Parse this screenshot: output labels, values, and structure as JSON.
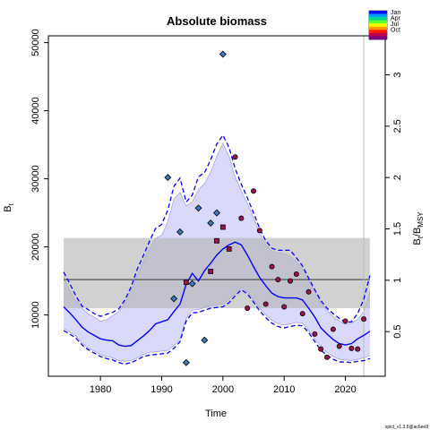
{
  "chart_data": {
    "type": "scatter",
    "title": "Absolute biomass",
    "xlabel": "Time",
    "ylabel_left": "B",
    "ylabel_left_sub": "t",
    "ylabel_right": "B",
    "ylabel_right_sub": "t",
    "ylabel_right_mid": "/B",
    "ylabel_right_sub2": "MSY",
    "xlim": [
      1971.5,
      2026.5
    ],
    "ylim": [
      1000,
      51000
    ],
    "ylim_right": [
      0.065,
      3.38
    ],
    "bmsy": 15200,
    "x_ticks": [
      1980,
      1990,
      2000,
      2010,
      2020
    ],
    "y_ticks": [
      10000,
      20000,
      30000,
      40000,
      50000
    ],
    "y_ticks_right": [
      0.5,
      1,
      1.5,
      2,
      2.5,
      3
    ],
    "bmsy_band": {
      "x": [
        1974,
        2024
      ],
      "y": [
        11000,
        21300
      ]
    },
    "vertical_line_x": 2023,
    "grid": false,
    "series": [
      {
        "name": "",
        "role": "estimate",
        "x": [
          1974,
          1975,
          1976,
          1977,
          1978,
          1979,
          1980,
          1981,
          1982,
          1983,
          1984,
          1985,
          1986,
          1987,
          1988,
          1989,
          1990,
          1991,
          1992,
          1993,
          1994,
          1995,
          1996,
          1997,
          1998,
          1999,
          2000,
          2001,
          2002,
          2003,
          2004,
          2005,
          2006,
          2007,
          2008,
          2009,
          2010,
          2011,
          2012,
          2013,
          2014,
          2015,
          2016,
          2017,
          2018,
          2019,
          2020,
          2021,
          2022,
          2023,
          2024
        ],
        "y": [
          11200,
          10300,
          9300,
          8200,
          7500,
          7000,
          6500,
          6300,
          6200,
          5600,
          5400,
          5500,
          6200,
          6900,
          7700,
          8700,
          9000,
          9300,
          10500,
          11600,
          14500,
          16100,
          15000,
          16500,
          17600,
          18800,
          19700,
          20300,
          20700,
          20300,
          18800,
          17100,
          15500,
          14300,
          13200,
          12700,
          12500,
          12500,
          12500,
          12200,
          11000,
          9700,
          8100,
          7200,
          6400,
          5800,
          5600,
          5800,
          6500,
          7000,
          7600
        ]
      },
      {
        "name": "",
        "role": "ci_upper_dashed",
        "x": [
          1974,
          1975,
          1976,
          1977,
          1978,
          1979,
          1980,
          1981,
          1982,
          1983,
          1984,
          1985,
          1986,
          1987,
          1988,
          1989,
          1990,
          1991,
          1992,
          1993,
          1994,
          1995,
          1996,
          1997,
          1998,
          1999,
          2000,
          2001,
          2002,
          2003,
          2004,
          2005,
          2006,
          2007,
          2008,
          2009,
          2010,
          2011,
          2012,
          2013,
          2014,
          2015,
          2016,
          2017,
          2018,
          2019,
          2020,
          2021,
          2022,
          2023,
          2024
        ],
        "y": [
          16300,
          14600,
          12800,
          11300,
          10800,
          10200,
          9800,
          10100,
          10400,
          10900,
          12200,
          14100,
          16700,
          18700,
          20800,
          22700,
          23300,
          25400,
          28900,
          30100,
          26600,
          27600,
          30300,
          30900,
          32800,
          35100,
          36400,
          34600,
          31500,
          29200,
          27200,
          25000,
          22700,
          20900,
          19800,
          19500,
          19500,
          19500,
          18400,
          17200,
          15400,
          13700,
          12100,
          11000,
          10200,
          9500,
          8900,
          9000,
          10200,
          12300,
          15800
        ]
      },
      {
        "name": "",
        "role": "ci_lower_dashed",
        "x": [
          1974,
          1975,
          1976,
          1977,
          1978,
          1979,
          1980,
          1981,
          1982,
          1983,
          1984,
          1985,
          1986,
          1987,
          1988,
          1989,
          1990,
          1991,
          1992,
          1993,
          1994,
          1995,
          1996,
          1997,
          1998,
          1999,
          2000,
          2001,
          2002,
          2003,
          2004,
          2005,
          2006,
          2007,
          2008,
          2009,
          2010,
          2011,
          2012,
          2013,
          2014,
          2015,
          2016,
          2017,
          2018,
          2019,
          2020,
          2021,
          2022,
          2023,
          2024
        ],
        "y": [
          7700,
          7200,
          6600,
          5600,
          4900,
          4400,
          3900,
          3600,
          3400,
          3000,
          2800,
          3000,
          3400,
          3900,
          4100,
          4200,
          4300,
          4400,
          5100,
          6100,
          9100,
          10300,
          10400,
          10700,
          11000,
          11100,
          11200,
          11800,
          12800,
          13700,
          13100,
          11900,
          10600,
          9600,
          8800,
          8300,
          8100,
          8300,
          8500,
          8400,
          7400,
          6100,
          4800,
          4100,
          3500,
          3100,
          3100,
          3000,
          3200,
          3300,
          3600
        ]
      },
      {
        "name": "",
        "role": "ci_upper_band",
        "x": [
          1974,
          1975,
          1976,
          1977,
          1978,
          1979,
          1980,
          1981,
          1982,
          1983,
          1984,
          1985,
          1986,
          1987,
          1988,
          1989,
          1990,
          1991,
          1992,
          1993,
          1994,
          1995,
          1996,
          1997,
          1998,
          1999,
          2000,
          2001,
          2002,
          2003,
          2004,
          2005,
          2006,
          2007,
          2008,
          2009,
          2010,
          2011,
          2012,
          2013,
          2014,
          2015,
          2016,
          2017,
          2018,
          2019,
          2020,
          2021,
          2022,
          2023,
          2024
        ],
        "y": [
          15600,
          13600,
          12000,
          11000,
          10200,
          9700,
          9100,
          9300,
          9900,
          10500,
          11700,
          13600,
          15800,
          17800,
          19800,
          21300,
          21700,
          23700,
          27000,
          28000,
          26000,
          26600,
          28400,
          29300,
          31000,
          33300,
          35200,
          33300,
          30300,
          28200,
          26400,
          24300,
          22000,
          20300,
          19400,
          19100,
          19000,
          18600,
          17800,
          16800,
          15000,
          13400,
          11800,
          10700,
          9800,
          9100,
          8600,
          8800,
          9400,
          10500,
          13400
        ]
      },
      {
        "name": "",
        "role": "ci_lower_band",
        "x": [
          1974,
          1975,
          1976,
          1977,
          1978,
          1979,
          1980,
          1981,
          1982,
          1983,
          1984,
          1985,
          1986,
          1987,
          1988,
          1989,
          1990,
          1991,
          1992,
          1993,
          1994,
          1995,
          1996,
          1997,
          1998,
          1999,
          2000,
          2001,
          2002,
          2003,
          2004,
          2005,
          2006,
          2007,
          2008,
          2009,
          2010,
          2011,
          2012,
          2013,
          2014,
          2015,
          2016,
          2017,
          2018,
          2019,
          2020,
          2021,
          2022,
          2023,
          2024
        ],
        "y": [
          8000,
          7500,
          6900,
          5900,
          5100,
          4700,
          4200,
          3900,
          3700,
          3300,
          3200,
          3300,
          3700,
          4200,
          4500,
          4600,
          4700,
          4800,
          5500,
          6500,
          9500,
          10700,
          10800,
          11100,
          11400,
          11500,
          11600,
          12300,
          13100,
          14000,
          13400,
          12300,
          11000,
          10000,
          9200,
          8700,
          8500,
          8700,
          8900,
          8800,
          7700,
          6500,
          5300,
          4500,
          3900,
          3500,
          3400,
          3300,
          3500,
          3700,
          4000
        ]
      }
    ],
    "observations": [
      {
        "x": 1991.0,
        "y": 30200,
        "color": "#3a7bbd",
        "shape": "diamond"
      },
      {
        "x": 1992.0,
        "y": 12400,
        "color": "#3a7bbd",
        "shape": "diamond"
      },
      {
        "x": 1993.0,
        "y": 22200,
        "color": "#3a7bbd",
        "shape": "diamond"
      },
      {
        "x": 1994.0,
        "y": 3000,
        "color": "#3a7bbd",
        "shape": "diamond"
      },
      {
        "x": 1995.0,
        "y": 14600,
        "color": "#3a7bbd",
        "shape": "diamond"
      },
      {
        "x": 1996.0,
        "y": 25700,
        "color": "#3a7bbd",
        "shape": "diamond"
      },
      {
        "x": 1997.0,
        "y": 6300,
        "color": "#3a7bbd",
        "shape": "diamond"
      },
      {
        "x": 1998.0,
        "y": 23500,
        "color": "#3a7bbd",
        "shape": "diamond"
      },
      {
        "x": 1999.0,
        "y": 25000,
        "color": "#3a7bbd",
        "shape": "diamond"
      },
      {
        "x": 2000.0,
        "y": 48300,
        "color": "#3a7bbd",
        "shape": "diamond"
      },
      {
        "x": 1994.0,
        "y": 14800,
        "color": "#a0104a",
        "shape": "square"
      },
      {
        "x": 1998.0,
        "y": 16400,
        "color": "#a0104a",
        "shape": "square"
      },
      {
        "x": 1999.0,
        "y": 20900,
        "color": "#a0104a",
        "shape": "square"
      },
      {
        "x": 2000.0,
        "y": 22900,
        "color": "#a0104a",
        "shape": "square"
      },
      {
        "x": 2001.0,
        "y": 19700,
        "color": "#a0104a",
        "shape": "square"
      },
      {
        "x": 2002.0,
        "y": 33200,
        "color": "#a0104a",
        "shape": "circle"
      },
      {
        "x": 2003.0,
        "y": 24200,
        "color": "#a0104a",
        "shape": "circle"
      },
      {
        "x": 2004.0,
        "y": 11000,
        "color": "#a0104a",
        "shape": "circle"
      },
      {
        "x": 2005.0,
        "y": 28200,
        "color": "#a0104a",
        "shape": "circle"
      },
      {
        "x": 2006.0,
        "y": 22400,
        "color": "#a0104a",
        "shape": "circle"
      },
      {
        "x": 2007.0,
        "y": 11600,
        "color": "#a0104a",
        "shape": "circle"
      },
      {
        "x": 2008.0,
        "y": 17100,
        "color": "#a0104a",
        "shape": "circle"
      },
      {
        "x": 2009.0,
        "y": 15200,
        "color": "#a0104a",
        "shape": "circle"
      },
      {
        "x": 2010.0,
        "y": 11200,
        "color": "#a0104a",
        "shape": "circle"
      },
      {
        "x": 2011.0,
        "y": 15000,
        "color": "#a0104a",
        "shape": "circle"
      },
      {
        "x": 2012.0,
        "y": 16000,
        "color": "#a0104a",
        "shape": "circle"
      },
      {
        "x": 2013.0,
        "y": 10200,
        "color": "#a0104a",
        "shape": "circle"
      },
      {
        "x": 2014.0,
        "y": 13400,
        "color": "#a0104a",
        "shape": "circle"
      },
      {
        "x": 2015.0,
        "y": 7200,
        "color": "#a0104a",
        "shape": "circle"
      },
      {
        "x": 2016.0,
        "y": 5000,
        "color": "#a0104a",
        "shape": "circle"
      },
      {
        "x": 2017.0,
        "y": 3800,
        "color": "#a0104a",
        "shape": "circle"
      },
      {
        "x": 2018.0,
        "y": 7900,
        "color": "#a0104a",
        "shape": "circle"
      },
      {
        "x": 2019.0,
        "y": 5400,
        "color": "#a0104a",
        "shape": "circle"
      },
      {
        "x": 2020.0,
        "y": 9100,
        "color": "#a0104a",
        "shape": "circle"
      },
      {
        "x": 2021.0,
        "y": 5100,
        "color": "#a0104a",
        "shape": "circle"
      },
      {
        "x": 2022.0,
        "y": 5000,
        "color": "#a0104a",
        "shape": "circle"
      },
      {
        "x": 2023.0,
        "y": 9400,
        "color": "#a0104a",
        "shape": "circle"
      }
    ],
    "legend": {
      "placement": "top-right",
      "entries": [
        "Jan",
        "Apr",
        "Jul",
        "Oct"
      ],
      "gradient_colors": [
        "#0a0af0",
        "#00a0ff",
        "#00d890",
        "#60ff30",
        "#ffff00",
        "#ff9900",
        "#ff1a00",
        "#c0004a",
        "#7a0080"
      ]
    },
    "colors": {
      "estimate_line": "#0000ff",
      "ci_band_fill": "#d9d9fb",
      "bmsy_band_fill": "#b3b3b3",
      "bmsy_line": "#666666",
      "vertical_line": "#bbbbbb",
      "point_outline": "#000000"
    }
  },
  "footer": {
    "version": "spict_v1.3.5@ac6ee8"
  }
}
